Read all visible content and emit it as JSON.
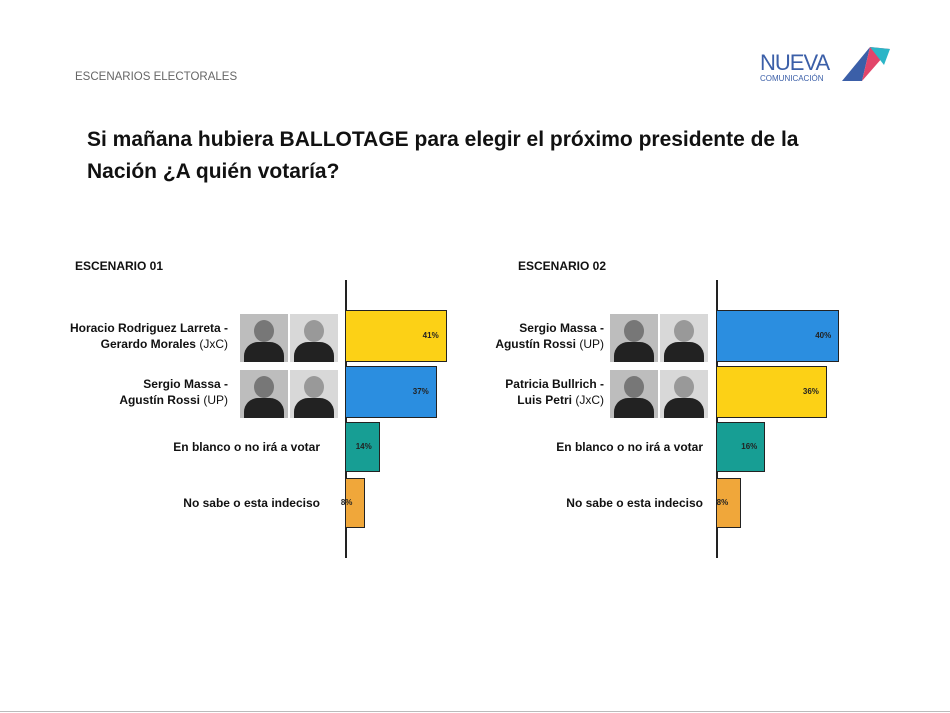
{
  "header": {
    "section": "ESCENARIOS ELECTORALES",
    "logo_top": "NUEVA",
    "logo_bottom": "COMUNICACIÓN",
    "title": "Si mañana hubiera BALLOTAGE para elegir el próximo presidente de la Nación ¿A quién votaría?"
  },
  "chart_data": [
    {
      "type": "bar",
      "orientation": "horizontal",
      "title": "ESCENARIO 01",
      "categories": [
        "Horacio Rodriguez Larreta - Gerardo Morales",
        "Sergio Massa - Agustín Rossi",
        "En blanco o no irá a votar",
        "No sabe o esta indeciso"
      ],
      "category_notes": [
        "(JxC)",
        "(UP)",
        null,
        null
      ],
      "values": [
        41,
        37,
        14,
        8
      ],
      "value_labels": [
        "41%",
        "37%",
        "14%",
        "8%"
      ],
      "colors": [
        "#fcd116",
        "#2b8ee0",
        "#179e94",
        "#f0a73a"
      ]
    },
    {
      "type": "bar",
      "orientation": "horizontal",
      "title": "ESCENARIO 02",
      "categories": [
        "Sergio Massa - Agustín Rossi",
        "Patricia Bullrich - Luis Petri",
        "En blanco o no irá a votar",
        "No sabe o esta indeciso"
      ],
      "category_notes": [
        "(UP)",
        "(JxC)",
        null,
        null
      ],
      "values": [
        40,
        36,
        16,
        8
      ],
      "value_labels": [
        "40%",
        "36%",
        "16%",
        "8%"
      ],
      "colors": [
        "#2b8ee0",
        "#fcd116",
        "#179e94",
        "#f0a73a"
      ]
    }
  ]
}
